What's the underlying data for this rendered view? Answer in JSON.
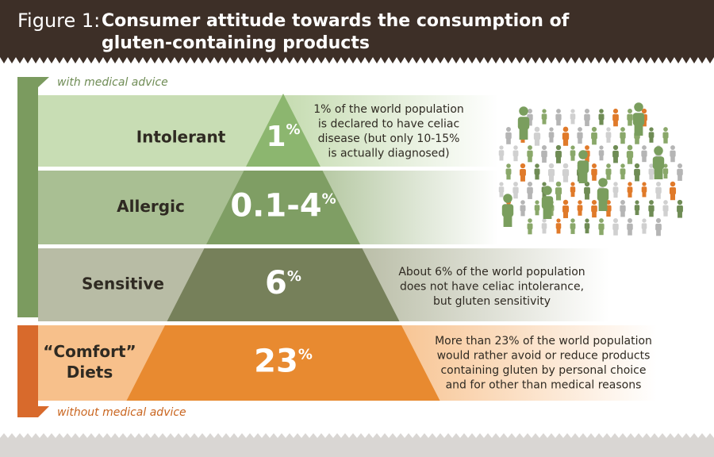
{
  "header": {
    "figure": "Figure 1:",
    "title_lines": [
      "Consumer attitude towards the consumption of",
      "gluten-containing products"
    ]
  },
  "brackets": {
    "top": "with medical advice",
    "bottom": "without medical advice"
  },
  "levels": [
    {
      "label_lines": [
        "Intolerant"
      ],
      "percent": {
        "number": "1",
        "symbol": "%"
      },
      "note_lines": [
        "1% of the world population",
        "is declared to have celiac",
        "disease (but only 10-15%",
        "is actually diagnosed)"
      ]
    },
    {
      "label_lines": [
        "Allergic"
      ],
      "percent": {
        "number": "0.1-4",
        "symbol": "%"
      },
      "note_lines": []
    },
    {
      "label_lines": [
        "Sensitive"
      ],
      "percent": {
        "number": "6",
        "symbol": "%"
      },
      "note_lines": [
        "About 6% of the world population",
        "does not have celiac intolerance,",
        "but gluten sensitivity"
      ]
    },
    {
      "label_lines": [
        "“Comfort”",
        "Diets"
      ],
      "percent": {
        "number": "23",
        "symbol": "%"
      },
      "note_lines": [
        "More than 23% of the world population",
        "would rather avoid or reduce products",
        "containing gluten by personal choice",
        "and for other than medical reasons"
      ]
    }
  ]
}
